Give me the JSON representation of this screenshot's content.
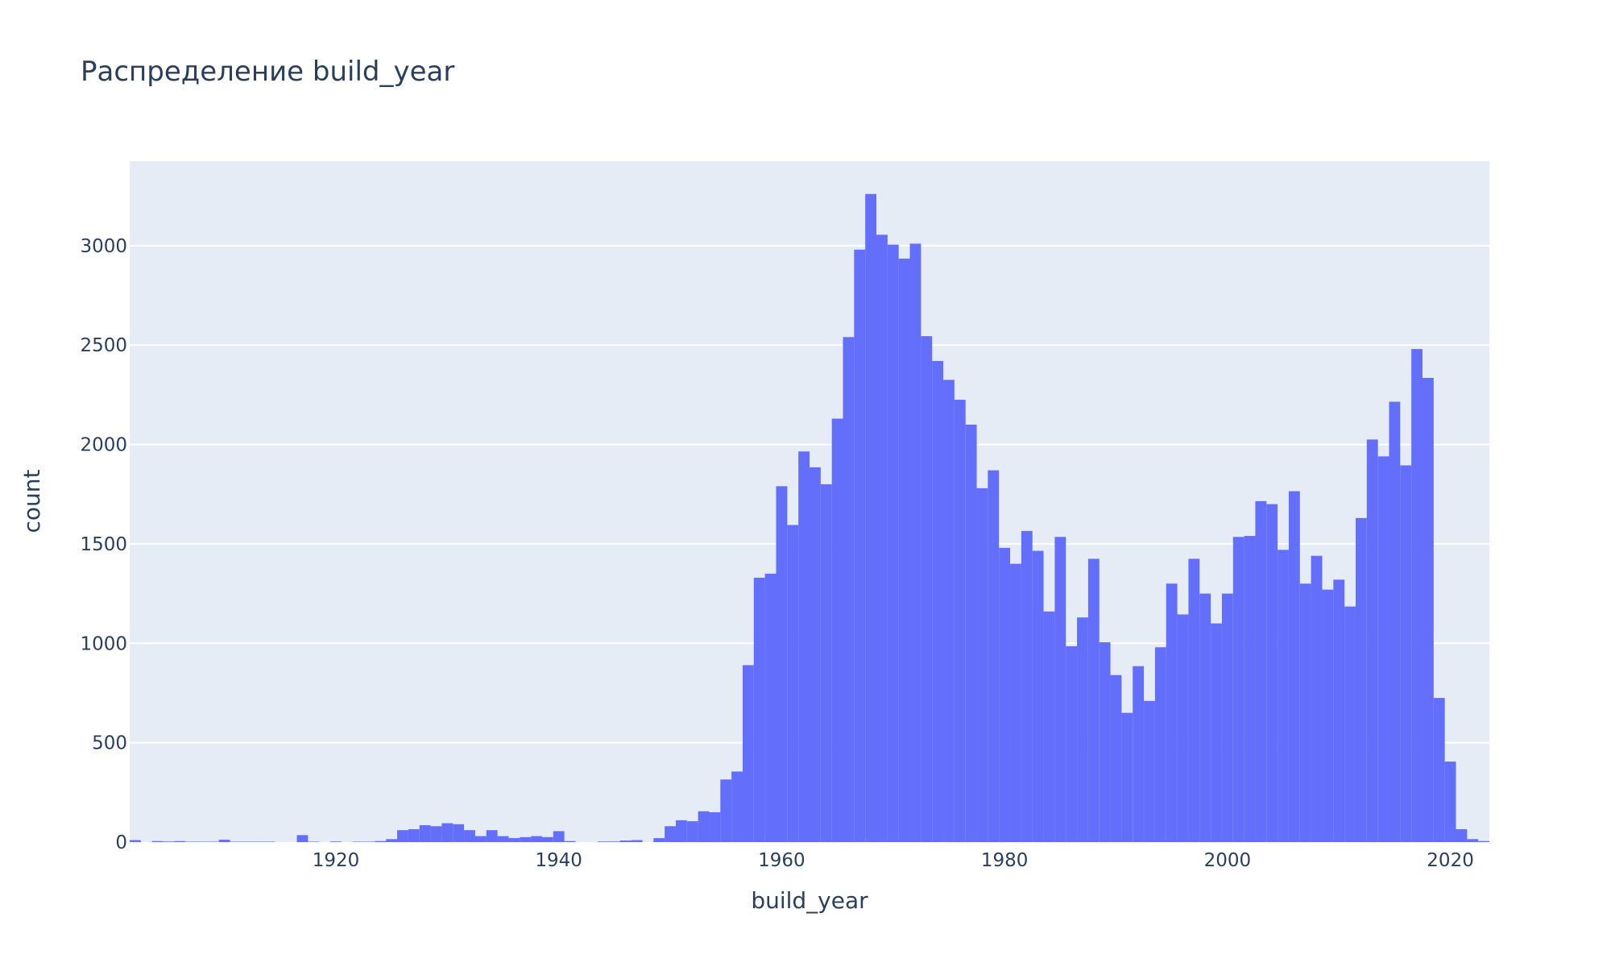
{
  "chart_data": {
    "type": "bar",
    "title": "Распределение build_year",
    "xlabel": "build_year",
    "ylabel": "count",
    "bin_width": 1,
    "xlim": [
      1901.5,
      2023.5
    ],
    "ylim": [
      0,
      3425
    ],
    "x_ticks": [
      1920,
      1940,
      1960,
      1980,
      2000,
      2020
    ],
    "y_ticks": [
      0,
      500,
      1000,
      1500,
      2000,
      2500,
      3000
    ],
    "grid": true,
    "colors": {
      "bar": "#636efa",
      "plot_bg": "#e5ecf6",
      "text": "#2a3f5f"
    },
    "x": [
      1902,
      1903,
      1904,
      1905,
      1906,
      1907,
      1908,
      1909,
      1910,
      1911,
      1912,
      1913,
      1914,
      1915,
      1916,
      1917,
      1918,
      1919,
      1920,
      1921,
      1922,
      1923,
      1924,
      1925,
      1926,
      1927,
      1928,
      1929,
      1930,
      1931,
      1932,
      1933,
      1934,
      1935,
      1936,
      1937,
      1938,
      1939,
      1940,
      1941,
      1942,
      1943,
      1944,
      1945,
      1946,
      1947,
      1948,
      1949,
      1950,
      1951,
      1952,
      1953,
      1954,
      1955,
      1956,
      1957,
      1958,
      1959,
      1960,
      1961,
      1962,
      1963,
      1964,
      1965,
      1966,
      1967,
      1968,
      1969,
      1970,
      1971,
      1972,
      1973,
      1974,
      1975,
      1976,
      1977,
      1978,
      1979,
      1980,
      1981,
      1982,
      1983,
      1984,
      1985,
      1986,
      1987,
      1988,
      1989,
      1990,
      1991,
      1992,
      1993,
      1994,
      1995,
      1996,
      1997,
      1998,
      1999,
      2000,
      2001,
      2002,
      2003,
      2004,
      2005,
      2006,
      2007,
      2008,
      2009,
      2010,
      2011,
      2012,
      2013,
      2014,
      2015,
      2016,
      2017,
      2018,
      2019,
      2020,
      2021,
      2022,
      2023
    ],
    "values": [
      10,
      0,
      5,
      3,
      5,
      2,
      2,
      2,
      12,
      2,
      2,
      2,
      2,
      0,
      0,
      35,
      2,
      0,
      3,
      0,
      2,
      2,
      5,
      15,
      60,
      65,
      85,
      80,
      95,
      90,
      60,
      30,
      60,
      30,
      20,
      25,
      30,
      25,
      55,
      5,
      0,
      0,
      3,
      3,
      8,
      10,
      0,
      20,
      80,
      110,
      105,
      155,
      150,
      315,
      355,
      890,
      1330,
      1350,
      1790,
      1595,
      1965,
      1885,
      1800,
      2130,
      2540,
      2980,
      3260,
      3055,
      3005,
      2935,
      3010,
      2545,
      2420,
      2325,
      2225,
      2100,
      1780,
      1870,
      1480,
      1400,
      1565,
      1465,
      1160,
      1535,
      985,
      1130,
      1425,
      1005,
      840,
      650,
      885,
      710,
      980,
      1300,
      1145,
      1425,
      1250,
      1100,
      1250,
      1535,
      1540,
      1715,
      1700,
      1470,
      1765,
      1300,
      1440,
      1270,
      1320,
      1185,
      1630,
      2025,
      1940,
      2215,
      1895,
      2480,
      2335,
      725,
      405,
      65,
      15,
      5
    ]
  }
}
